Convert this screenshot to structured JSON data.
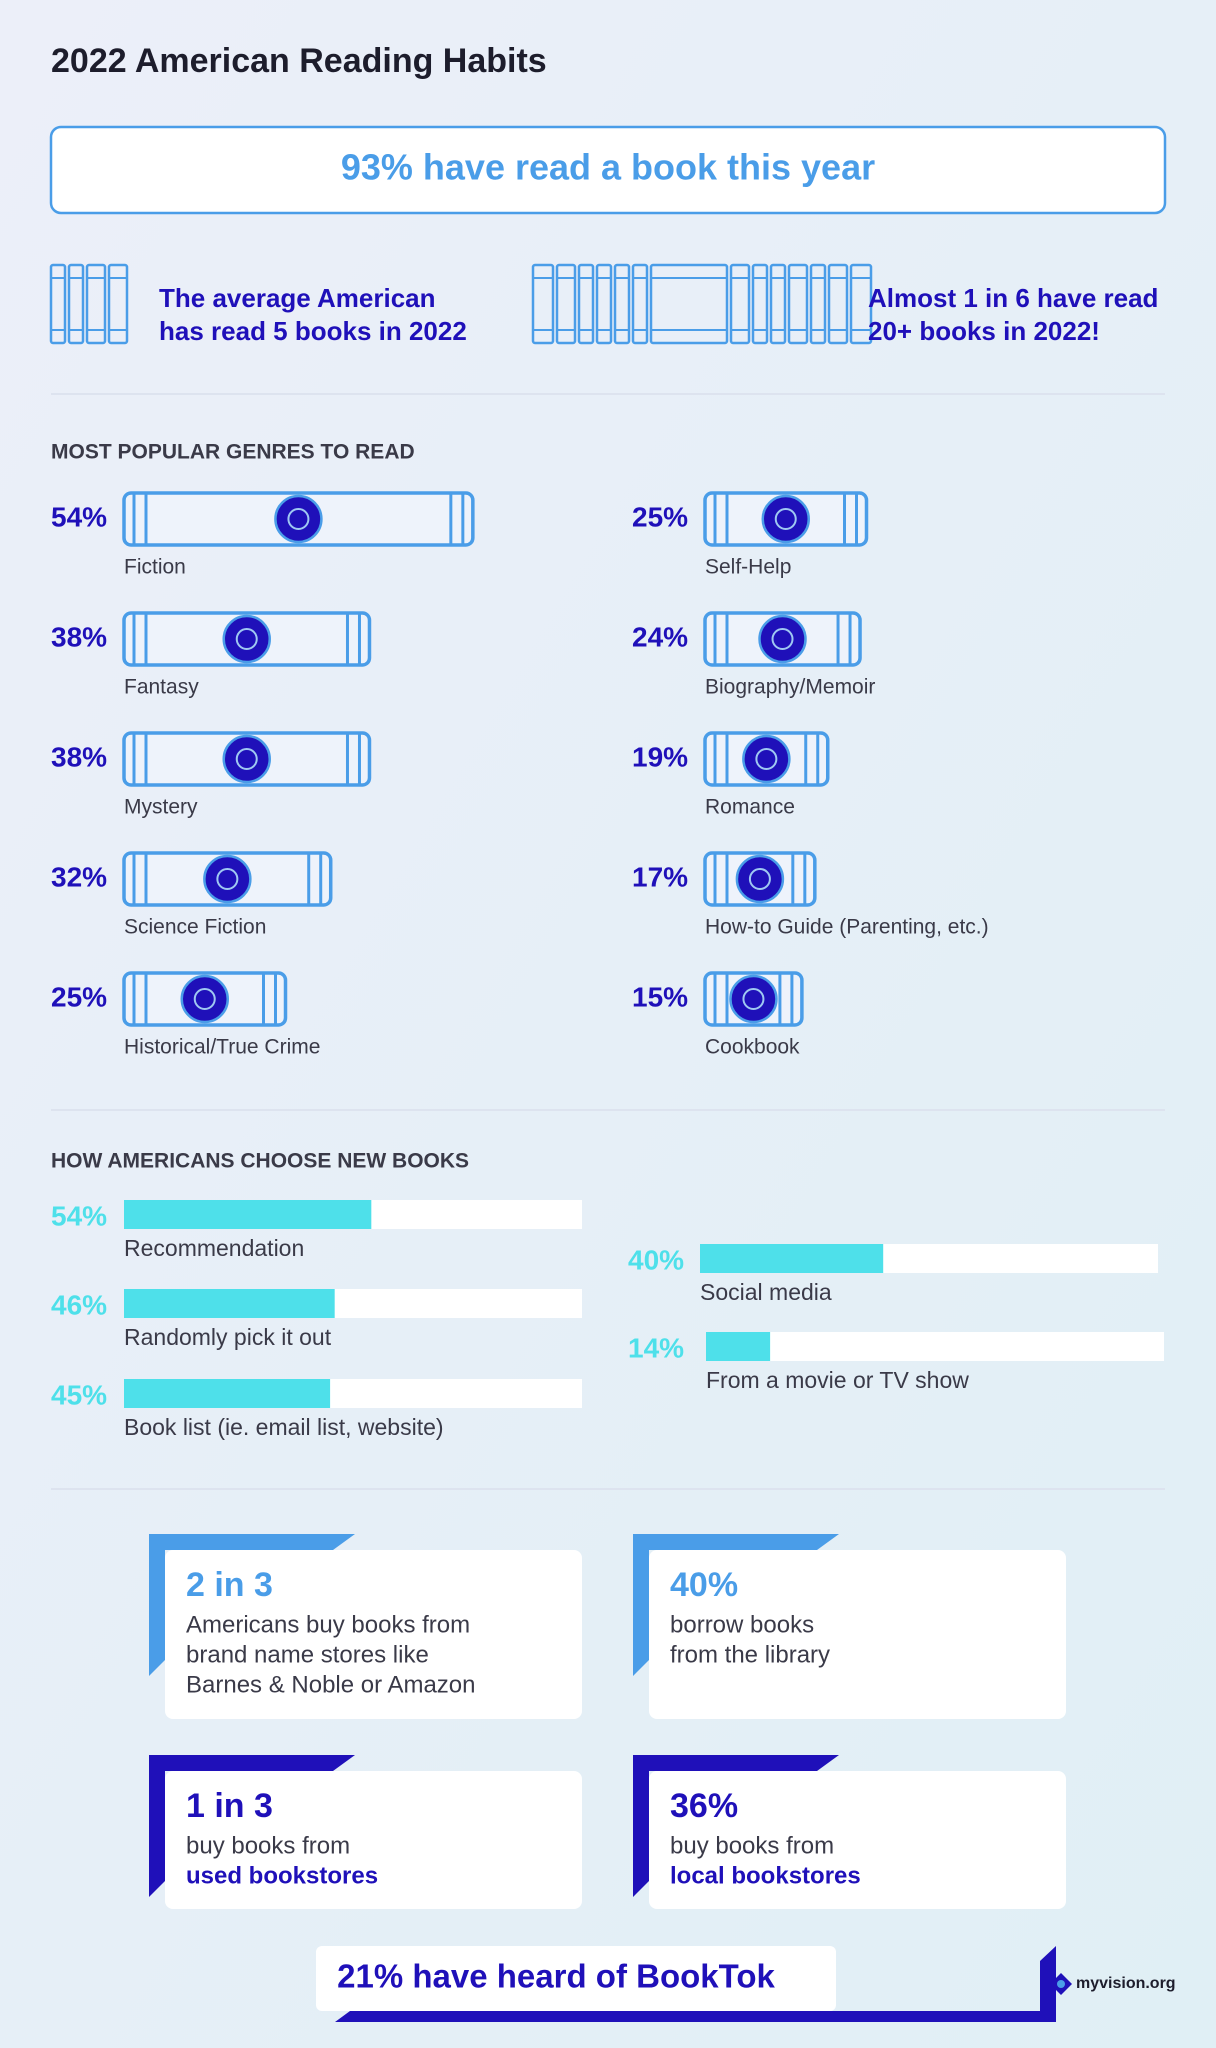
{
  "header": {
    "title": "2022 American Reading Habits"
  },
  "banner": "93% have read a book this year",
  "facts": [
    {
      "lines": [
        "The average American",
        "has read 5 books in 2022"
      ]
    },
    {
      "lines": [
        "Almost 1 in 6 have read",
        "20+ books in 2022!"
      ]
    }
  ],
  "genres": {
    "title": "MOST POPULAR GENRES TO READ",
    "items": [
      {
        "name": "Fiction",
        "value": 54,
        "label": "54%"
      },
      {
        "name": "Fantasy",
        "value": 38,
        "label": "38%"
      },
      {
        "name": "Mystery",
        "value": 38,
        "label": "38%"
      },
      {
        "name": "Science Fiction",
        "value": 32,
        "label": "32%"
      },
      {
        "name": "Historical/True Crime",
        "value": 25,
        "label": "25%"
      },
      {
        "name": "Self-Help",
        "value": 25,
        "label": "25%"
      },
      {
        "name": "Biography/Memoir",
        "value": 24,
        "label": "24%"
      },
      {
        "name": "Romance",
        "value": 19,
        "label": "19%"
      },
      {
        "name": "How-to Guide (Parenting, etc.)",
        "value": 17,
        "label": "17%"
      },
      {
        "name": "Cookbook",
        "value": 15,
        "label": "15%"
      }
    ]
  },
  "choose": {
    "title": "HOW AMERICANS CHOOSE NEW BOOKS",
    "items": [
      {
        "name": "Recommendation",
        "value": 54,
        "label": "54%"
      },
      {
        "name": "Randomly pick it out",
        "value": 46,
        "label": "46%"
      },
      {
        "name": "Book list (ie. email list, website)",
        "value": 45,
        "label": "45%"
      },
      {
        "name": "Social media",
        "value": 40,
        "label": "40%"
      },
      {
        "name": "From a movie or TV show",
        "value": 14,
        "label": "14%"
      }
    ]
  },
  "cards": [
    {
      "headline": "2 in 3",
      "lines": [
        "Americans buy books from",
        "brand name stores like",
        "Barnes & Noble or Amazon"
      ]
    },
    {
      "headline": "40%",
      "lines": [
        "borrow books",
        "from the library"
      ]
    },
    {
      "headline": "1 in 3",
      "lines": [
        "buy books from",
        "used bookstores"
      ]
    },
    {
      "headline": "36%",
      "lines": [
        "buy books from",
        "local bookstores"
      ]
    }
  ],
  "footer": {
    "booktok": "21% have heard of BookTok",
    "brand": "myvision.org"
  }
}
